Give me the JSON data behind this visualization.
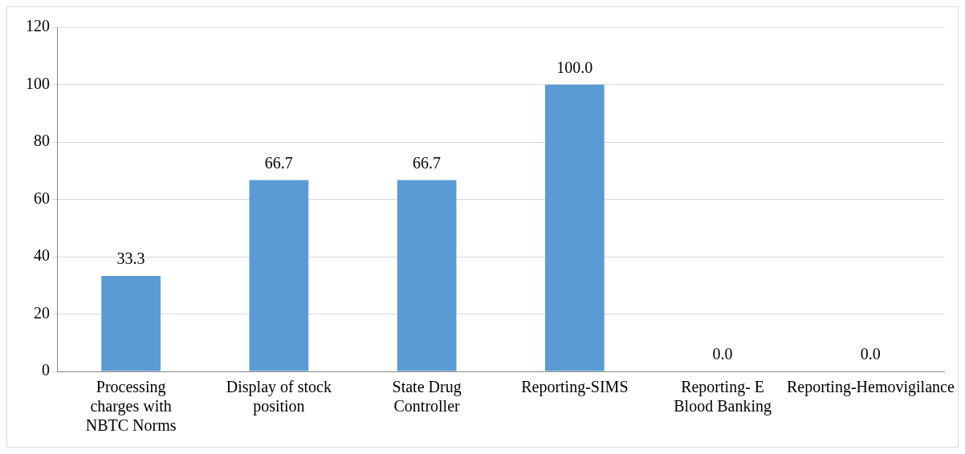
{
  "chart_data": {
    "type": "bar",
    "categories": [
      "Processing charges with NBTC Norms",
      "Display of stock position",
      "State Drug Controller",
      "Reporting-SIMS",
      "Reporting- E Blood Banking",
      "Reporting-Hemovigilance"
    ],
    "values": [
      33.3,
      66.7,
      66.7,
      100.0,
      0.0,
      0.0
    ],
    "value_labels": [
      "33.3",
      "66.7",
      "66.7",
      "100.0",
      "0.0",
      "0.0"
    ],
    "color": "#5b9bd5",
    "ylim": [
      0,
      120
    ],
    "yticks": [
      0,
      20,
      40,
      60,
      80,
      100,
      120
    ],
    "grid": "y",
    "legend": false
  }
}
